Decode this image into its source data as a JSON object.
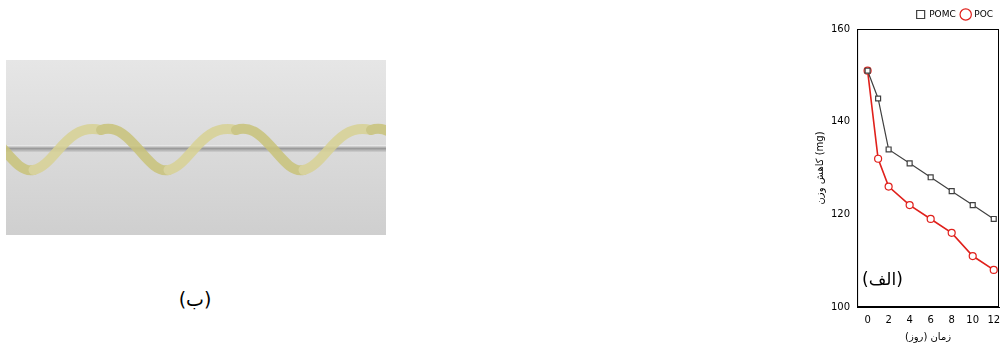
{
  "chart_data": {
    "type": "line",
    "x_label": "زمان (روز)",
    "y_label": "کاهش وزن (mg)",
    "x": [
      0,
      1,
      2,
      4,
      6,
      8,
      10,
      12
    ],
    "series": [
      {
        "name": "POMC",
        "color": "#404040",
        "marker": "square",
        "values": [
          151,
          145,
          134,
          131,
          128,
          125,
          122,
          119
        ]
      },
      {
        "name": "POC",
        "color": "#e0201b",
        "marker": "circle",
        "values": [
          151,
          132,
          126,
          122,
          119,
          116,
          111,
          108
        ]
      }
    ],
    "xlim": [
      -1,
      12.5
    ],
    "xticks": [
      0,
      2,
      4,
      6,
      8,
      10,
      12
    ],
    "ylim": [
      100,
      160
    ],
    "yticks": [
      100,
      120,
      140,
      160
    ],
    "grid": false,
    "legend": "top-right",
    "annotations": [
      "(الف)"
    ]
  },
  "photo": {
    "caption": "(ب)"
  }
}
